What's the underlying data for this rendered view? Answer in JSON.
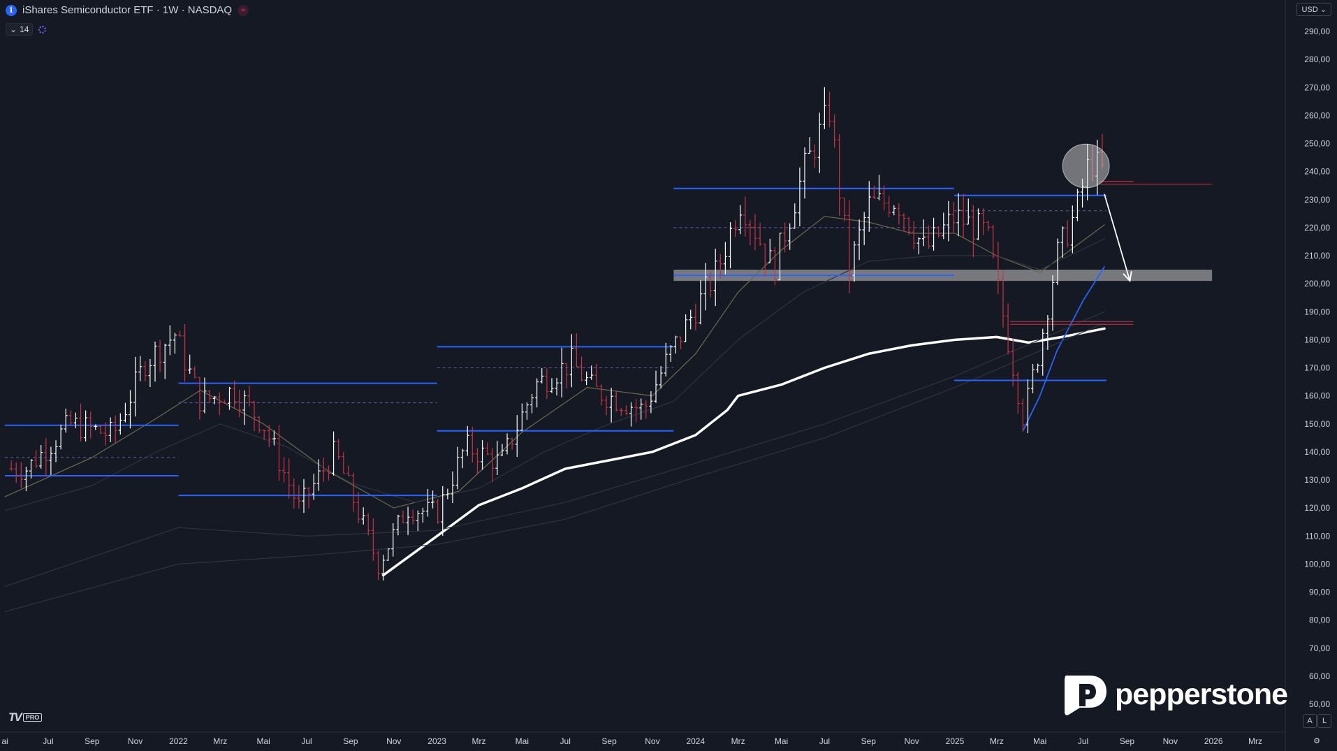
{
  "header": {
    "title": "iShares Semiconductor ETF · 1W · NASDAQ",
    "info_glyph": "i",
    "flag_glyph": "≈",
    "indicator_count": "14",
    "currency": "USD"
  },
  "branding": {
    "tv": "TV",
    "tv_pro": "PRO",
    "broker": "pepperstone"
  },
  "corner_buttons": {
    "auto": "A",
    "log": "L"
  },
  "colors": {
    "background": "#151924",
    "bull": "#ffffff",
    "bear": "#c93444",
    "level": "#2962ff",
    "ma_white": "#ffffff",
    "ma_olive": "#6d6a4f",
    "ma_grey": "#2f3340",
    "zone": "#c8c8c8"
  },
  "chart_data": {
    "type": "candlestick",
    "title": "iShares Semiconductor ETF · 1W · NASDAQ",
    "ylim": [
      42,
      294
    ],
    "y_ticks": [
      "290,00",
      "280,00",
      "270,00",
      "260,00",
      "250,00",
      "240,00",
      "230,00",
      "220,00",
      "210,00",
      "200,00",
      "190,00",
      "180,00",
      "170,00",
      "160,00",
      "150,00",
      "140,00",
      "130,00",
      "120,00",
      "110,00",
      "100,00",
      "90,00",
      "80,00",
      "70,00",
      "60,00",
      "50,00"
    ],
    "y_tick_values": [
      290,
      280,
      270,
      260,
      250,
      240,
      230,
      220,
      210,
      200,
      190,
      180,
      170,
      160,
      150,
      140,
      130,
      120,
      110,
      100,
      90,
      80,
      70,
      60,
      50
    ],
    "x_ticks": [
      "ai",
      "Jul",
      "Sep",
      "Nov",
      "2022",
      "Mrz",
      "Mai",
      "Jul",
      "Sep",
      "Nov",
      "2023",
      "Mrz",
      "Mai",
      "Jul",
      "Sep",
      "Nov",
      "2024",
      "Mrz",
      "Mai",
      "Jul",
      "Sep",
      "Nov",
      "2025",
      "Mrz",
      "Mai",
      "Jul",
      "Sep",
      "Nov",
      "2026",
      "Mrz"
    ],
    "x_tick_dates": [
      "2021-05-01",
      "2021-07-01",
      "2021-09-01",
      "2021-11-01",
      "2022-01-01",
      "2022-03-01",
      "2022-05-01",
      "2022-07-01",
      "2022-09-01",
      "2022-11-01",
      "2023-01-01",
      "2023-03-01",
      "2023-05-01",
      "2023-07-01",
      "2023-09-01",
      "2023-11-01",
      "2024-01-01",
      "2024-03-01",
      "2024-05-01",
      "2024-07-01",
      "2024-09-01",
      "2024-11-01",
      "2025-01-01",
      "2025-03-01",
      "2025-05-01",
      "2025-07-01",
      "2025-09-01",
      "2025-11-01",
      "2026-01-01",
      "2026-03-01"
    ],
    "x_range": [
      "2021-05-01",
      "2026-03-01"
    ],
    "price_anchors": [
      [
        "2021-06-01",
        134
      ],
      [
        "2021-08-01",
        150
      ],
      [
        "2021-10-01",
        146
      ],
      [
        "2021-11-15",
        172
      ],
      [
        "2021-12-27",
        182
      ],
      [
        "2022-02-01",
        158
      ],
      [
        "2022-03-20",
        162
      ],
      [
        "2022-05-01",
        150
      ],
      [
        "2022-06-20",
        120
      ],
      [
        "2022-08-10",
        140
      ],
      [
        "2022-10-10",
        100
      ],
      [
        "2022-11-20",
        120
      ],
      [
        "2023-01-01",
        118
      ],
      [
        "2023-02-10",
        142
      ],
      [
        "2023-04-01",
        136
      ],
      [
        "2023-05-20",
        164
      ],
      [
        "2023-07-10",
        172
      ],
      [
        "2023-08-10",
        162
      ],
      [
        "2023-10-20",
        155
      ],
      [
        "2023-11-20",
        172
      ],
      [
        "2023-12-25",
        188
      ],
      [
        "2024-02-01",
        205
      ],
      [
        "2024-03-05",
        230
      ],
      [
        "2024-04-20",
        205
      ],
      [
        "2024-06-01",
        240
      ],
      [
        "2024-07-08",
        262
      ],
      [
        "2024-08-05",
        205
      ],
      [
        "2024-09-01",
        228
      ],
      [
        "2024-10-10",
        230
      ],
      [
        "2024-11-20",
        212
      ],
      [
        "2025-01-01",
        224
      ],
      [
        "2025-02-15",
        218
      ],
      [
        "2025-04-08",
        152
      ],
      [
        "2025-05-01",
        178
      ],
      [
        "2025-05-25",
        210
      ],
      [
        "2025-06-20",
        225
      ],
      [
        "2025-07-10",
        244
      ],
      [
        "2025-07-30",
        240
      ]
    ],
    "candle_start": "2021-05-10",
    "candle_end": "2025-08-01",
    "moving_averages": [
      {
        "name": "",
        "width": 3.5,
        "color_key": "ma_white",
        "points": [
          [
            "2022-10-17",
            96
          ],
          [
            "2023-01-01",
            110
          ],
          [
            "2023-03-01",
            121
          ],
          [
            "2023-05-01",
            127
          ],
          [
            "2023-07-01",
            134
          ],
          [
            "2023-09-01",
            137
          ],
          [
            "2023-11-01",
            140
          ],
          [
            "2024-01-01",
            146
          ],
          [
            "2024-02-15",
            155
          ],
          [
            "2024-03-01",
            160
          ],
          [
            "2024-05-01",
            164
          ],
          [
            "2024-07-01",
            170
          ],
          [
            "2024-09-01",
            175
          ],
          [
            "2024-11-01",
            178
          ],
          [
            "2025-01-01",
            180
          ],
          [
            "2025-03-01",
            181
          ],
          [
            "2025-04-15",
            179
          ],
          [
            "2025-06-01",
            181
          ],
          [
            "2025-07-31",
            184
          ]
        ]
      },
      {
        "name": "",
        "width": 1.8,
        "color_key": "level",
        "points": [
          [
            "2025-04-08",
            148
          ],
          [
            "2025-05-01",
            160
          ],
          [
            "2025-05-25",
            176
          ],
          [
            "2025-07-01",
            194
          ],
          [
            "2025-07-31",
            206
          ]
        ]
      },
      {
        "name": "",
        "width": 1.2,
        "color_key": "ma_olive",
        "points": [
          [
            "2021-05-01",
            124
          ],
          [
            "2021-09-01",
            138
          ],
          [
            "2021-12-01",
            152
          ],
          [
            "2022-02-01",
            162
          ],
          [
            "2022-05-01",
            150
          ],
          [
            "2022-08-01",
            133
          ],
          [
            "2022-11-01",
            120
          ],
          [
            "2023-02-01",
            126
          ],
          [
            "2023-05-01",
            147
          ],
          [
            "2023-08-01",
            163
          ],
          [
            "2023-11-01",
            160
          ],
          [
            "2024-01-01",
            175
          ],
          [
            "2024-03-01",
            197
          ],
          [
            "2024-05-01",
            212
          ],
          [
            "2024-07-01",
            224
          ],
          [
            "2024-09-01",
            222
          ],
          [
            "2024-11-01",
            218
          ],
          [
            "2025-01-01",
            218
          ],
          [
            "2025-03-01",
            210
          ],
          [
            "2025-05-01",
            204
          ],
          [
            "2025-07-31",
            221
          ]
        ]
      },
      {
        "name": "",
        "width": 1.2,
        "color_key": "ma_grey",
        "points": [
          [
            "2021-05-01",
            119
          ],
          [
            "2021-09-01",
            128
          ],
          [
            "2021-12-01",
            140
          ],
          [
            "2022-03-01",
            150
          ],
          [
            "2022-06-01",
            142
          ],
          [
            "2022-09-01",
            129
          ],
          [
            "2022-12-01",
            122
          ],
          [
            "2023-03-01",
            127
          ],
          [
            "2023-06-01",
            140
          ],
          [
            "2023-09-01",
            150
          ],
          [
            "2023-12-01",
            158
          ],
          [
            "2024-03-01",
            180
          ],
          [
            "2024-06-01",
            197
          ],
          [
            "2024-09-01",
            208
          ],
          [
            "2024-12-01",
            210
          ],
          [
            "2025-03-01",
            210
          ],
          [
            "2025-05-01",
            205
          ],
          [
            "2025-07-31",
            216
          ]
        ]
      },
      {
        "name": "",
        "width": 1.2,
        "color_key": "ma_grey",
        "points": [
          [
            "2021-05-01",
            92
          ],
          [
            "2022-01-01",
            113
          ],
          [
            "2022-07-01",
            110
          ],
          [
            "2023-01-01",
            112
          ],
          [
            "2023-07-01",
            122
          ],
          [
            "2024-01-01",
            136
          ],
          [
            "2024-07-01",
            150
          ],
          [
            "2025-01-01",
            167
          ],
          [
            "2025-07-31",
            190
          ]
        ]
      },
      {
        "name": "",
        "width": 1.2,
        "color_key": "ma_grey",
        "points": [
          [
            "2021-05-01",
            83
          ],
          [
            "2022-01-01",
            100
          ],
          [
            "2022-07-01",
            103
          ],
          [
            "2023-01-01",
            107
          ],
          [
            "2023-07-01",
            116
          ],
          [
            "2024-01-01",
            131
          ],
          [
            "2024-07-01",
            145
          ],
          [
            "2025-01-01",
            163
          ],
          [
            "2025-07-31",
            186
          ]
        ]
      }
    ],
    "levels": [
      {
        "y": 149.5,
        "from": "2021-05-01",
        "to": "2022-01-01",
        "style": "solid"
      },
      {
        "y": 131.5,
        "from": "2021-05-01",
        "to": "2022-01-01",
        "style": "solid"
      },
      {
        "y": 138,
        "from": "2021-05-01",
        "to": "2022-01-01",
        "style": "dashed"
      },
      {
        "y": 164.5,
        "from": "2022-01-01",
        "to": "2023-01-01",
        "style": "solid"
      },
      {
        "y": 124.5,
        "from": "2022-01-01",
        "to": "2023-01-01",
        "style": "solid"
      },
      {
        "y": 157.5,
        "from": "2022-01-01",
        "to": "2023-01-01",
        "style": "dashed"
      },
      {
        "y": 177.5,
        "from": "2023-01-01",
        "to": "2023-12-01",
        "style": "solid"
      },
      {
        "y": 147.5,
        "from": "2023-01-01",
        "to": "2023-12-01",
        "style": "solid"
      },
      {
        "y": 170,
        "from": "2023-01-01",
        "to": "2023-12-01",
        "style": "dashed"
      },
      {
        "y": 234,
        "from": "2023-12-01",
        "to": "2024-12-31",
        "style": "solid"
      },
      {
        "y": 203,
        "from": "2023-12-01",
        "to": "2024-12-31",
        "style": "solid"
      },
      {
        "y": 220,
        "from": "2023-12-01",
        "to": "2024-12-31",
        "style": "dashed"
      },
      {
        "y": 231.5,
        "from": "2024-12-31",
        "to": "2025-08-03",
        "style": "solid"
      },
      {
        "y": 165.5,
        "from": "2024-12-31",
        "to": "2025-08-03",
        "style": "solid"
      },
      {
        "y": 226,
        "from": "2024-12-31",
        "to": "2025-08-03",
        "style": "dashed"
      }
    ],
    "red_lines": [
      {
        "y": 235.5,
        "from": "2025-07-25",
        "to": "2025-12-30"
      },
      {
        "y": 236.5,
        "from": "2025-07-25",
        "to": "2025-09-10"
      },
      {
        "y": 185.5,
        "from": "2025-03-20",
        "to": "2025-09-10"
      },
      {
        "y": 186.5,
        "from": "2025-03-20",
        "to": "2025-09-10"
      }
    ],
    "support_zone": {
      "y_low": 201,
      "y_high": 205,
      "from": "2023-12-01",
      "to": "2025-12-30"
    },
    "highlight_ellipse": {
      "center": [
        "2025-07-05",
        242
      ],
      "rx_days": 33,
      "ry": 7.8
    },
    "arrow": {
      "from": [
        "2025-07-31",
        232
      ],
      "to": [
        "2025-09-05",
        201
      ]
    }
  }
}
